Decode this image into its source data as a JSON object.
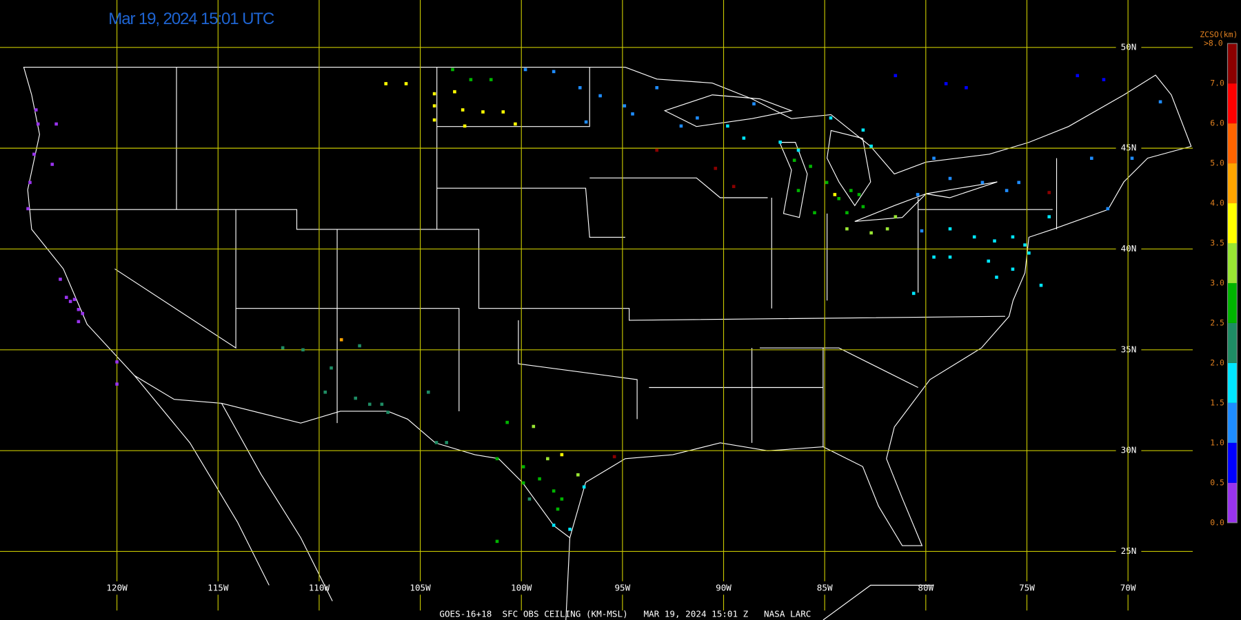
{
  "header": {
    "title": "Mar 19, 2024 15:01 UTC"
  },
  "map": {
    "xlim": [
      -125,
      -66.8
    ],
    "ylim": [
      21.6,
      52.35
    ],
    "lat_lines": [
      {
        "value": 50,
        "label": "50N"
      },
      {
        "value": 45,
        "label": "45N"
      },
      {
        "value": 40,
        "label": "40N"
      },
      {
        "value": 35,
        "label": "35N"
      },
      {
        "value": 30,
        "label": "30N"
      },
      {
        "value": 25,
        "label": "25N"
      }
    ],
    "lon_lines": [
      {
        "value": -120,
        "label": "120W"
      },
      {
        "value": -115,
        "label": "115W"
      },
      {
        "value": -110,
        "label": "110W"
      },
      {
        "value": -105,
        "label": "105W"
      },
      {
        "value": -100,
        "label": "100W"
      },
      {
        "value": -95,
        "label": "95W"
      },
      {
        "value": -90,
        "label": "90W"
      },
      {
        "value": -85,
        "label": "85W"
      },
      {
        "value": -80,
        "label": "80W"
      },
      {
        "value": -75,
        "label": "75W"
      },
      {
        "value": -70,
        "label": "70W"
      }
    ],
    "grid_color": "#c8c800"
  },
  "legend": {
    "title": "ZCSO(km)",
    "top_label": ">8.0",
    "labels": [
      {
        "value": 0,
        "label": "0.0"
      },
      {
        "value": 0.5,
        "label": "0.5"
      },
      {
        "value": 1,
        "label": "1.0"
      },
      {
        "value": 1.5,
        "label": "1.5"
      },
      {
        "value": 2,
        "label": "2.0"
      },
      {
        "value": 2.5,
        "label": "2.5"
      },
      {
        "value": 3,
        "label": "3.0"
      },
      {
        "value": 3.5,
        "label": "3.5"
      },
      {
        "value": 4,
        "label": "4.0"
      },
      {
        "value": 5,
        "label": "5.0"
      },
      {
        "value": 6,
        "label": "6.0"
      },
      {
        "value": 7,
        "label": "7.0"
      }
    ],
    "colors": [
      "#9933ee",
      "#0000ff",
      "#1e8cff",
      "#00e6ff",
      "#1e8c64",
      "#00b400",
      "#99e633",
      "#ffff00",
      "#ffa500",
      "#ff6400",
      "#ff0000",
      "#8b0000"
    ]
  },
  "stations": [
    [
      -124.0,
      46.9,
      0.3
    ],
    [
      -123.9,
      46.2,
      0.3
    ],
    [
      -123.0,
      46.2,
      0.3
    ],
    [
      -124.1,
      44.7,
      0.3
    ],
    [
      -124.3,
      43.3,
      0.3
    ],
    [
      -124.4,
      42.0,
      0.3
    ],
    [
      -123.2,
      44.2,
      0.3
    ],
    [
      -122.8,
      38.5,
      0.3
    ],
    [
      -122.5,
      37.6,
      0.3
    ],
    [
      -122.3,
      37.4,
      0.3
    ],
    [
      -122.1,
      37.5,
      0.3
    ],
    [
      -121.9,
      37.0,
      0.3
    ],
    [
      -121.7,
      36.8,
      0.3
    ],
    [
      -121.9,
      36.4,
      0.3
    ],
    [
      -120.0,
      34.4,
      0.3
    ],
    [
      -120.0,
      33.3,
      0.3
    ],
    [
      -106.7,
      48.2,
      3.7
    ],
    [
      -105.7,
      48.2,
      3.7
    ],
    [
      -104.3,
      47.7,
      3.7
    ],
    [
      -103.3,
      47.8,
      3.7
    ],
    [
      -104.3,
      47.1,
      3.7
    ],
    [
      -102.9,
      46.9,
      3.7
    ],
    [
      -101.9,
      46.8,
      3.7
    ],
    [
      -100.9,
      46.8,
      3.7
    ],
    [
      -100.3,
      46.2,
      3.7
    ],
    [
      -102.8,
      46.1,
      3.7
    ],
    [
      -104.3,
      46.4,
      3.7
    ],
    [
      -103.4,
      48.9,
      2.7
    ],
    [
      -102.5,
      48.4,
      2.7
    ],
    [
      -101.5,
      48.4,
      2.7
    ],
    [
      -99.8,
      48.9,
      1.3
    ],
    [
      -98.4,
      48.8,
      1.3
    ],
    [
      -97.1,
      48.0,
      1.3
    ],
    [
      -96.1,
      47.6,
      1.3
    ],
    [
      -94.9,
      47.1,
      1.3
    ],
    [
      -94.5,
      46.7,
      1.3
    ],
    [
      -93.3,
      48.0,
      1.3
    ],
    [
      -96.8,
      46.3,
      1.3
    ],
    [
      -92.1,
      46.1,
      1.3
    ],
    [
      -91.3,
      46.5,
      1.3
    ],
    [
      -88.5,
      47.2,
      1.3
    ],
    [
      -89.8,
      46.1,
      1.8
    ],
    [
      -89.0,
      45.5,
      1.8
    ],
    [
      -87.2,
      45.3,
      1.8
    ],
    [
      -86.3,
      44.9,
      1.8
    ],
    [
      -84.7,
      46.5,
      1.8
    ],
    [
      -83.1,
      45.9,
      1.8
    ],
    [
      -82.7,
      45.1,
      1.8
    ],
    [
      -85.7,
      44.1,
      2.8
    ],
    [
      -86.3,
      42.9,
      2.8
    ],
    [
      -85.5,
      41.8,
      2.8
    ],
    [
      -84.3,
      42.5,
      2.8
    ],
    [
      -83.7,
      42.9,
      2.8
    ],
    [
      -83.3,
      42.7,
      2.8
    ],
    [
      -83.1,
      42.1,
      2.8
    ],
    [
      -83.9,
      41.8,
      2.8
    ],
    [
      -84.9,
      43.3,
      2.8
    ],
    [
      -86.5,
      44.4,
      2.8
    ],
    [
      -83.9,
      41.0,
      3.3
    ],
    [
      -82.7,
      40.8,
      3.3
    ],
    [
      -81.9,
      41.0,
      3.3
    ],
    [
      -81.5,
      41.6,
      3.3
    ],
    [
      -84.5,
      42.7,
      3.8
    ],
    [
      -93.3,
      44.9,
      7.5
    ],
    [
      -90.4,
      44.0,
      7.0
    ],
    [
      -89.5,
      43.1,
      7.0
    ],
    [
      -95.4,
      29.7,
      7.5
    ],
    [
      -73.9,
      42.8,
      7.5
    ],
    [
      -79.6,
      44.5,
      1.2
    ],
    [
      -78.8,
      43.5,
      1.2
    ],
    [
      -77.2,
      43.3,
      1.2
    ],
    [
      -76.0,
      42.9,
      1.2
    ],
    [
      -75.4,
      43.3,
      1.2
    ],
    [
      -80.4,
      42.7,
      1.2
    ],
    [
      -80.2,
      40.9,
      1.2
    ],
    [
      -79.0,
      48.2,
      0.8
    ],
    [
      -78.0,
      48.0,
      0.8
    ],
    [
      -81.5,
      48.6,
      0.9
    ],
    [
      -72.5,
      48.6,
      0.9
    ],
    [
      -71.2,
      48.4,
      0.8
    ],
    [
      -68.4,
      47.3,
      1.0
    ],
    [
      -71.8,
      44.5,
      1.2
    ],
    [
      -71.0,
      42.0,
      1.3
    ],
    [
      -69.8,
      44.5,
      1.3
    ],
    [
      -78.8,
      41.0,
      1.8
    ],
    [
      -77.6,
      40.6,
      1.8
    ],
    [
      -76.6,
      40.4,
      1.8
    ],
    [
      -75.7,
      40.6,
      1.8
    ],
    [
      -75.1,
      40.2,
      1.8
    ],
    [
      -74.9,
      39.8,
      1.8
    ],
    [
      -75.7,
      39.0,
      1.8
    ],
    [
      -76.5,
      38.6,
      1.8
    ],
    [
      -76.9,
      39.4,
      1.8
    ],
    [
      -79.6,
      39.6,
      1.8
    ],
    [
      -80.6,
      37.8,
      1.8
    ],
    [
      -73.9,
      41.6,
      1.8
    ],
    [
      -74.3,
      38.2,
      1.8
    ],
    [
      -78.8,
      39.6,
      1.5
    ],
    [
      -101.2,
      29.6,
      2.7
    ],
    [
      -99.9,
      29.2,
      2.7
    ],
    [
      -99.1,
      28.6,
      2.7
    ],
    [
      -98.4,
      28.0,
      2.7
    ],
    [
      -98.0,
      27.6,
      2.7
    ],
    [
      -99.9,
      28.4,
      2.7
    ],
    [
      -98.2,
      27.1,
      2.7
    ],
    [
      -101.2,
      25.5,
      2.7
    ],
    [
      -100.7,
      31.4,
      2.7
    ],
    [
      -99.4,
      31.2,
      3.3
    ],
    [
      -98.7,
      29.6,
      3.3
    ],
    [
      -98.0,
      29.8,
      3.8
    ],
    [
      -97.2,
      28.8,
      3.3
    ],
    [
      -98.4,
      26.3,
      1.8
    ],
    [
      -97.6,
      26.1,
      1.8
    ],
    [
      -96.9,
      28.2,
      1.8
    ],
    [
      -99.6,
      27.6,
      2.3
    ],
    [
      -111.8,
      35.1,
      2.2
    ],
    [
      -110.8,
      35.0,
      2.2
    ],
    [
      -108.0,
      35.2,
      2.2
    ],
    [
      -109.4,
      34.1,
      2.2
    ],
    [
      -109.7,
      32.9,
      2.2
    ],
    [
      -108.2,
      32.6,
      2.2
    ],
    [
      -107.5,
      32.3,
      2.2
    ],
    [
      -106.9,
      32.3,
      2.2
    ],
    [
      -106.6,
      31.9,
      2.2
    ],
    [
      -104.6,
      32.9,
      2.2
    ],
    [
      -104.2,
      30.4,
      2.2
    ],
    [
      -103.7,
      30.4,
      2.2
    ],
    [
      -108.9,
      35.5,
      4.5
    ]
  ],
  "footer": "GOES-16+18  SFC OBS CEILING (KM-MSL)   MAR 19, 2024 15:01 Z   NASA LARC"
}
